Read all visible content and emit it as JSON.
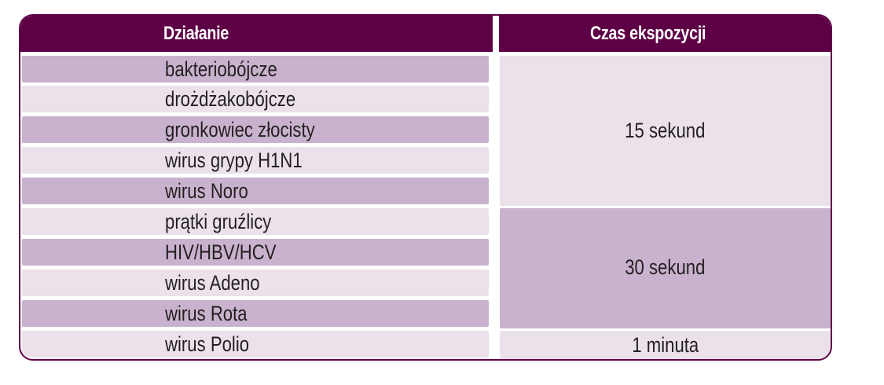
{
  "table": {
    "headers": {
      "action": "Działanie",
      "exposure_time": "Czas ekspozycji"
    },
    "rows": [
      {
        "label": "bakteriobójcze",
        "shade": "dark"
      },
      {
        "label": "drożdżakobójcze",
        "shade": "light"
      },
      {
        "label": "gronkowiec złocisty",
        "shade": "dark"
      },
      {
        "label": "wirus grypy H1N1",
        "shade": "light"
      },
      {
        "label": "wirus Noro",
        "shade": "dark"
      },
      {
        "label": "prątki gruźlicy",
        "shade": "light"
      },
      {
        "label": "HIV/HBV/HCV",
        "shade": "dark"
      },
      {
        "label": "wirus Adeno",
        "shade": "light"
      },
      {
        "label": "wirus Rota",
        "shade": "dark"
      },
      {
        "label": "wirus Polio",
        "shade": "light"
      }
    ],
    "time_groups": [
      {
        "label": "15 sekund",
        "rows_spanned": 5
      },
      {
        "label": "30 sekund",
        "rows_spanned": 4
      },
      {
        "label": "1 minuta",
        "rows_spanned": 1
      }
    ]
  },
  "colors": {
    "header_bg": "#5e0046",
    "header_text": "#ffffff",
    "row_dark": "#c9b2cd",
    "row_light": "#ebe1ea",
    "border": "#5e0046"
  }
}
